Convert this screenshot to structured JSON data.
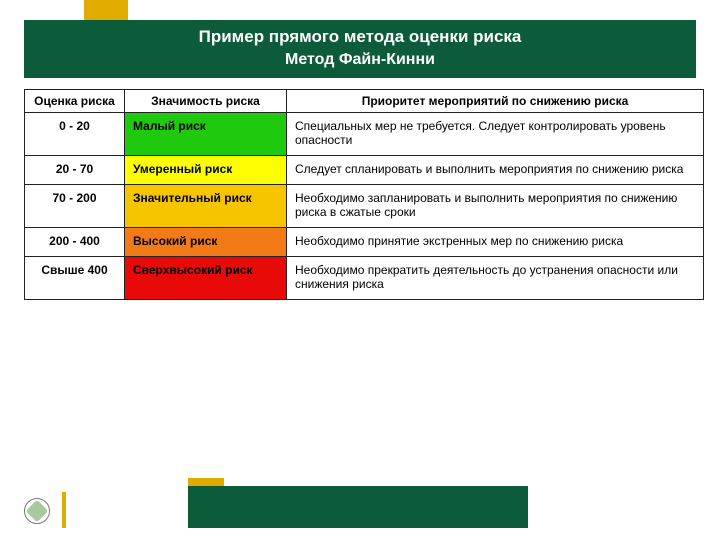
{
  "colors": {
    "header_bg": "#0c5b3a",
    "gold": "#e1ab00",
    "border": "#222222",
    "row_bg": [
      "#1fc90d",
      "#fdff00",
      "#f7c400",
      "#f37b17",
      "#e80909"
    ],
    "row_text": [
      "#000000",
      "#000000",
      "#000000",
      "#000000",
      "#000000"
    ]
  },
  "title": {
    "line1": "Пример прямого метода оценки риска",
    "line2": "Метод Файн-Кинни"
  },
  "table": {
    "headers": {
      "score": "Оценка риска",
      "significance": "Значимость риска",
      "priority": "Приоритет мероприятий по снижению риска"
    },
    "rows": [
      {
        "score": "0 - 20",
        "significance": "Малый риск",
        "priority": "Специальных мер не требуется. Следует контролировать уровень опасности"
      },
      {
        "score": "20 - 70",
        "significance": "Умеренный риск",
        "priority": "Следует спланировать и выполнить мероприятия по снижению риска"
      },
      {
        "score": "70 - 200",
        "significance": "Значительный риск",
        "priority": "Необходимо запланировать и выполнить мероприятия по снижению риска в сжатые сроки"
      },
      {
        "score": "200 - 400",
        "significance": "Высокий риск",
        "priority": "Необходимо принятие экстренных мер по снижению риска"
      },
      {
        "score": "Свыше 400",
        "significance": "Сверхвысокий  риск",
        "priority": "Необходимо прекратить деятельность до устранения опасности или снижения риска"
      }
    ]
  }
}
